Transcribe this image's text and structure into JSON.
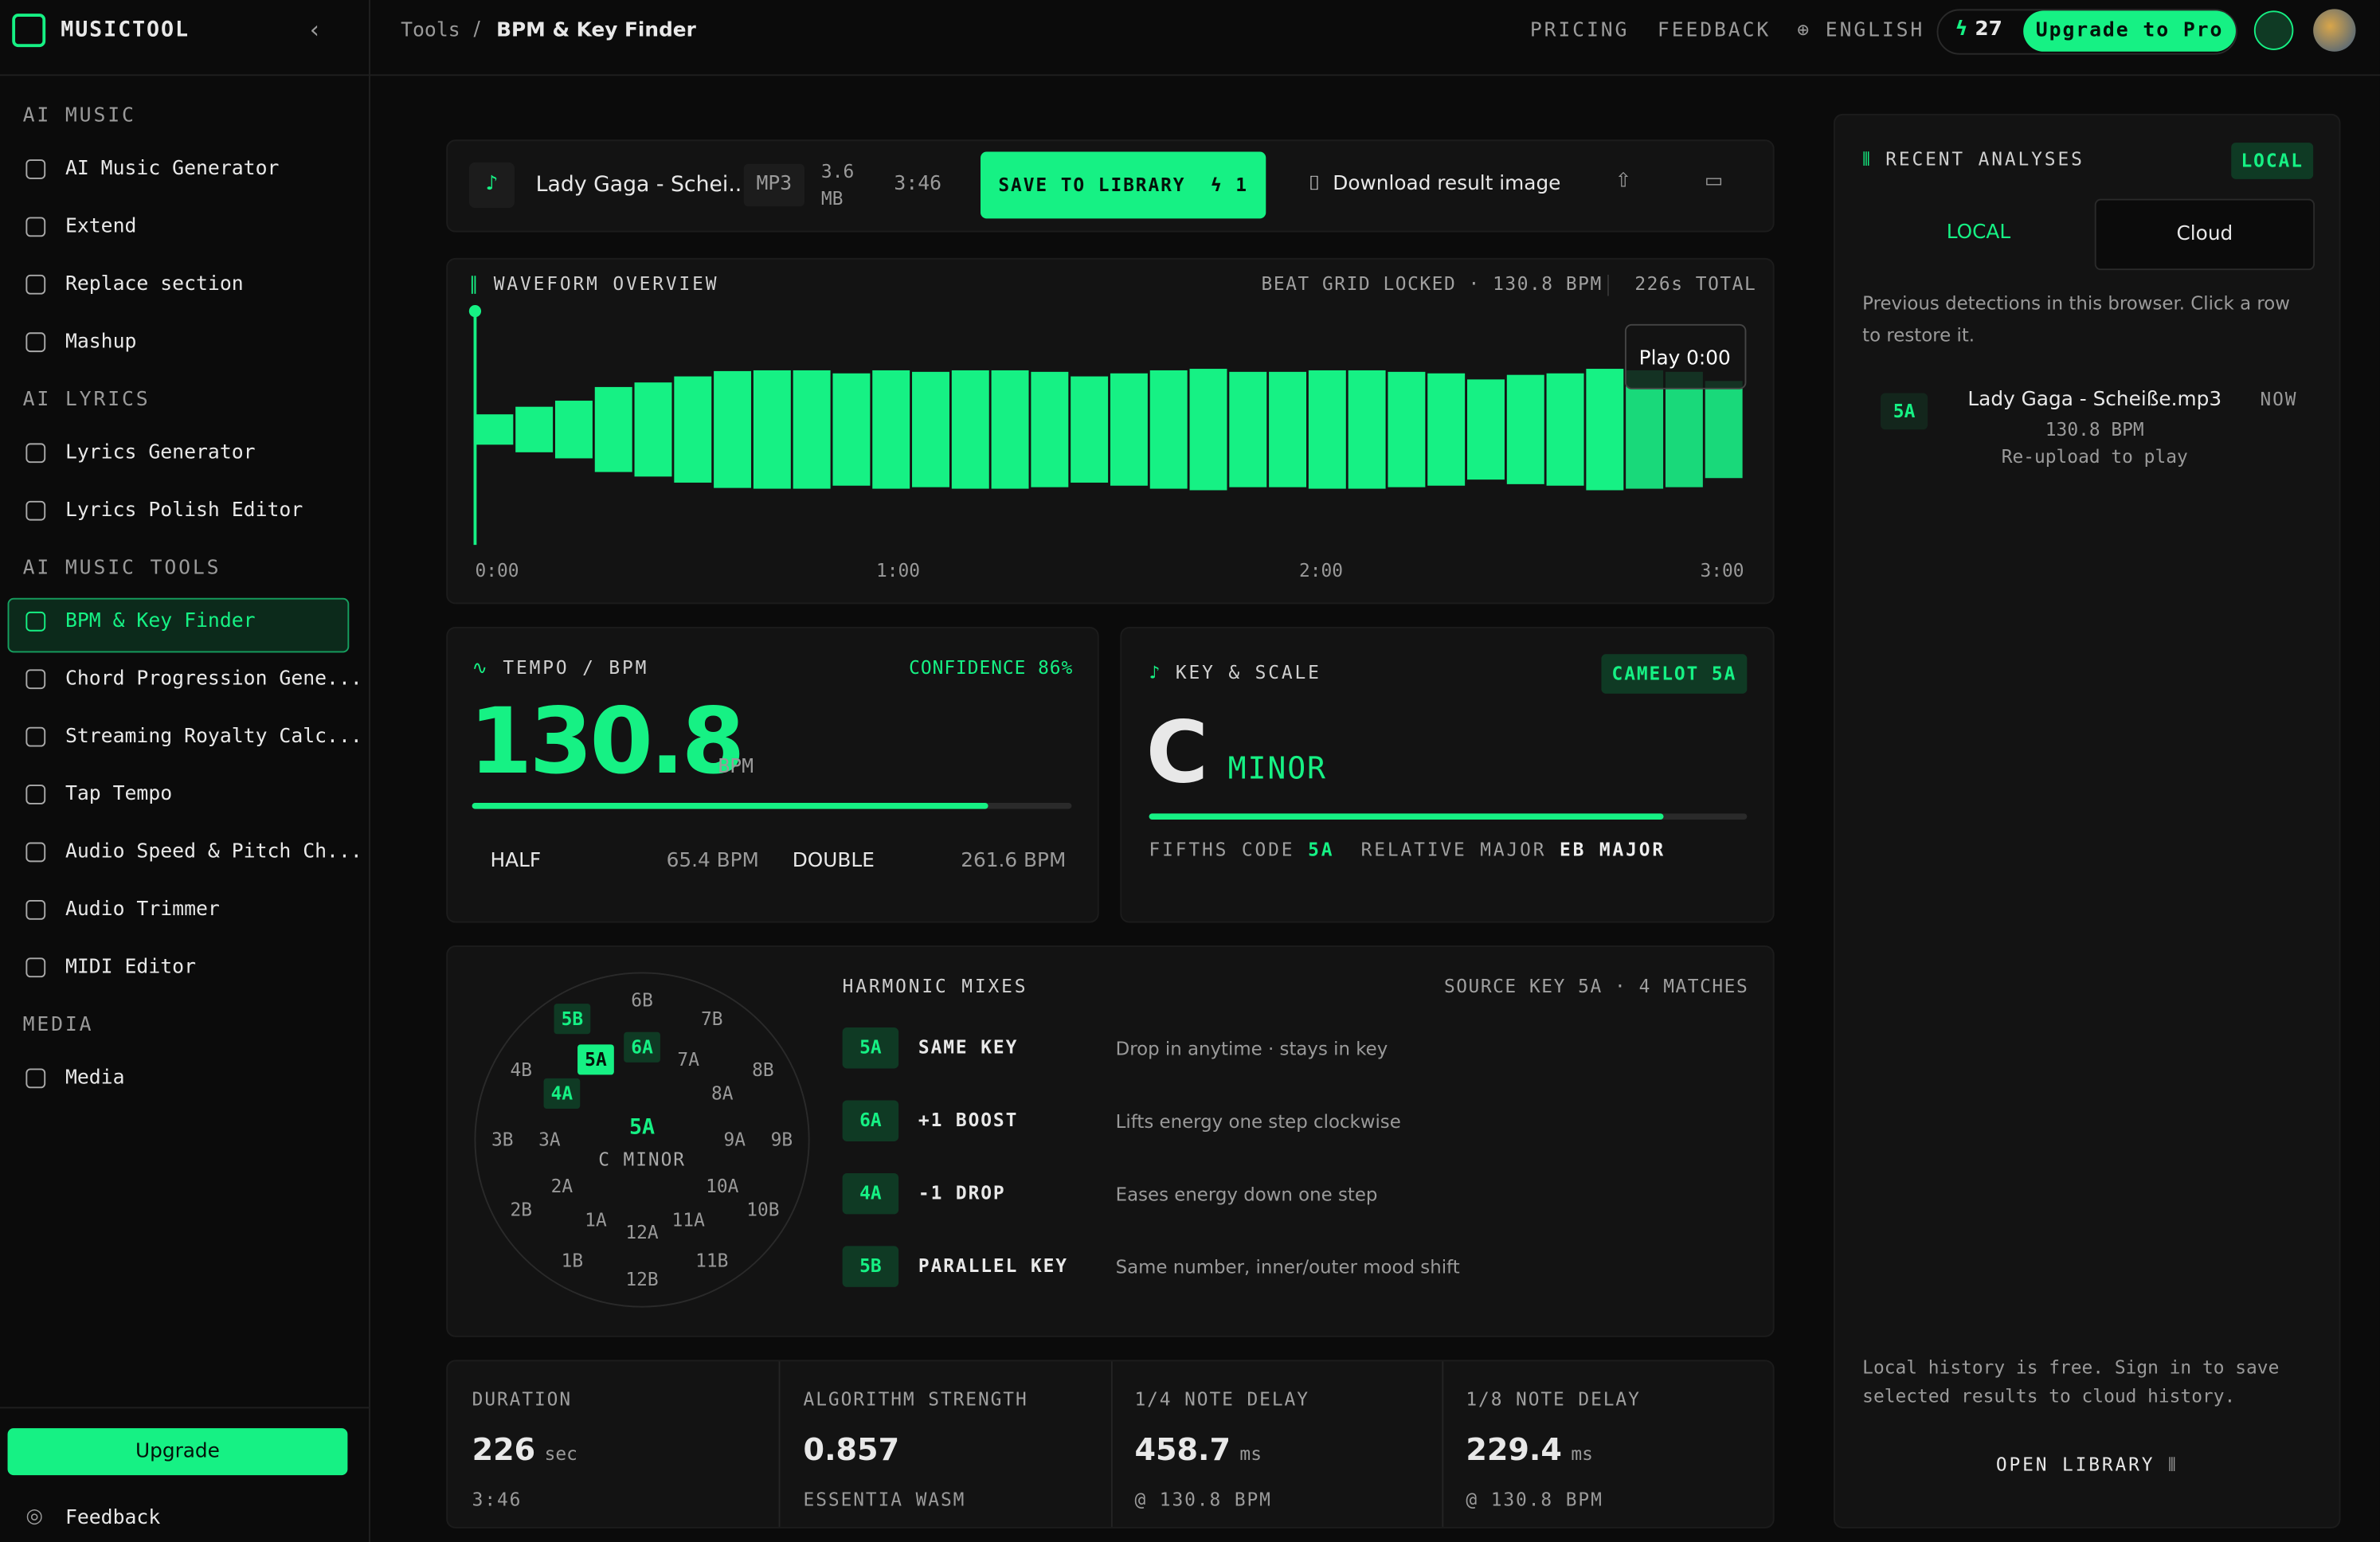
{
  "sidebar": {
    "brand": "MUSICTOOL",
    "sections": [
      {
        "title": "AI MUSIC",
        "items": [
          "AI Music Generator",
          "Extend",
          "Replace section",
          "Mashup"
        ]
      },
      {
        "title": "AI LYRICS",
        "items": [
          "Lyrics Generator",
          "Lyrics Polish Editor"
        ]
      },
      {
        "title": "AI MUSIC TOOLS",
        "items": [
          "BPM & Key Finder",
          "Chord Progression Gene...",
          "Streaming Royalty Calc...",
          "Tap Tempo",
          "Audio Speed & Pitch Ch...",
          "Audio Trimmer",
          "MIDI Editor"
        ]
      },
      {
        "title": "MEDIA",
        "items": [
          "Media"
        ]
      }
    ],
    "active": "BPM & Key Finder",
    "upgrade": "Upgrade",
    "feedback": "Feedback"
  },
  "topbar": {
    "breadcrumb": [
      "Tools",
      "BPM & Key Finder"
    ],
    "nav": [
      "PRICING",
      "FEEDBACK",
      "ENGLISH"
    ],
    "credits": "27",
    "upgrade": "Upgrade to Pro"
  },
  "file": {
    "name": "Lady Gaga - Schei...",
    "format": "MP3",
    "size": "3.6 MB",
    "duration": "3:46",
    "save": "SAVE TO LIBRARY",
    "save_count": "1",
    "download": "Download result image"
  },
  "waveform": {
    "title": "WAVEFORM OVERVIEW",
    "status": "BEAT GRID LOCKED · 130.8 BPM",
    "total": "226s TOTAL",
    "tooltip": "Play 0:00",
    "times": [
      "0:00",
      "1:00",
      "2:00",
      "3:00"
    ],
    "amplitudes": [
      20,
      30,
      38,
      56,
      62,
      70,
      77,
      78,
      78,
      74,
      78,
      76,
      78,
      78,
      76,
      70,
      74,
      78,
      80,
      76,
      76,
      78,
      78,
      76,
      74,
      66,
      72,
      74,
      80,
      78,
      76,
      64
    ]
  },
  "tempo": {
    "title": "TEMPO / BPM",
    "confidence": "CONFIDENCE 86%",
    "bpm": "130.8",
    "unit": "BPM",
    "half_label": "HALF",
    "half": "65.4 BPM",
    "double_label": "DOUBLE",
    "double": "261.6 BPM"
  },
  "key": {
    "title": "KEY & SCALE",
    "camelot": "CAMELOT 5A",
    "note": "C",
    "scale": "MINOR",
    "fifths_label": "FIFTHS CODE",
    "fifths": "5A",
    "relative_label": "RELATIVE MAJOR",
    "relative": "EB MAJOR"
  },
  "wheel": {
    "outer": [
      "1B",
      "2B",
      "3B",
      "4B",
      "5B",
      "6B",
      "7B",
      "8B",
      "9B",
      "10B",
      "11B",
      "12B"
    ],
    "inner": [
      "1A",
      "2A",
      "3A",
      "4A",
      "5A",
      "6A",
      "7A",
      "8A",
      "9A",
      "10A",
      "11A",
      "12A"
    ],
    "center_key": "5A",
    "center_name": "C MINOR"
  },
  "harmonic": {
    "title": "HARMONIC MIXES",
    "source": "SOURCE KEY 5A · 4 MATCHES",
    "mixes": [
      {
        "key": "5A",
        "name": "SAME KEY",
        "desc": "Drop in anytime · stays in key"
      },
      {
        "key": "6A",
        "name": "+1 BOOST",
        "desc": "Lifts energy one step clockwise"
      },
      {
        "key": "4A",
        "name": "-1 DROP",
        "desc": "Eases energy down one step"
      },
      {
        "key": "5B",
        "name": "PARALLEL KEY",
        "desc": "Same number, inner/outer mood shift"
      }
    ]
  },
  "stats": [
    {
      "label": "DURATION",
      "value": "226",
      "unit": "sec",
      "sub": "3:46"
    },
    {
      "label": "ALGORITHM STRENGTH",
      "value": "0.857",
      "unit": "",
      "sub": "ESSENTIA WASM"
    },
    {
      "label": "1/4 NOTE DELAY",
      "value": "458.7",
      "unit": "ms",
      "sub": "@ 130.8 BPM"
    },
    {
      "label": "1/8 NOTE DELAY",
      "value": "229.4",
      "unit": "ms",
      "sub": "@ 130.8 BPM"
    }
  ],
  "recent": {
    "title": "RECENT ANALYSES",
    "badge": "LOCAL",
    "tabs": [
      "LOCAL",
      "Cloud"
    ],
    "hint": "Previous detections in this browser. Click a row to restore it.",
    "items": [
      {
        "key": "5A",
        "name": "Lady Gaga - Scheiße.mp3",
        "bpm": "130.8 BPM",
        "note": "Re-upload to play",
        "time": "NOW"
      }
    ],
    "footer": "Local history is free. Sign in to save selected results to cloud history.",
    "open": "OPEN LIBRARY"
  }
}
